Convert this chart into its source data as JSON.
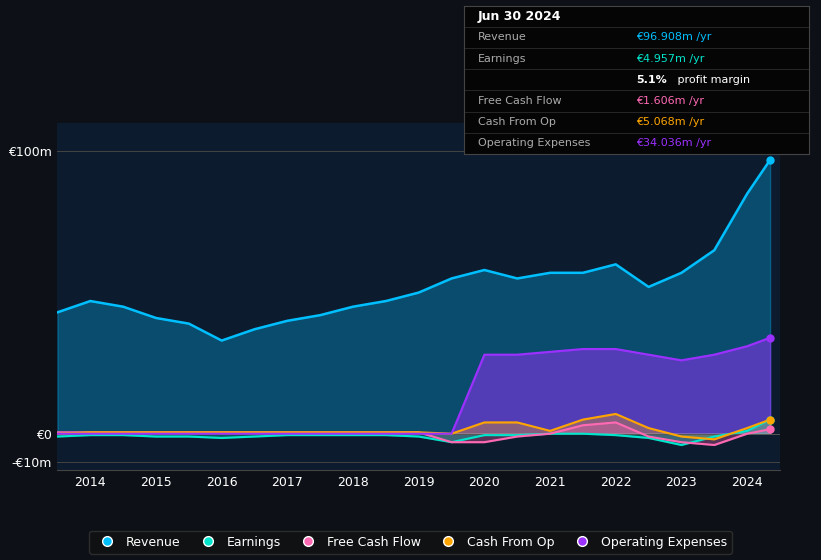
{
  "bg_color": "#0d1117",
  "plot_bg_color": "#0d1b2e",
  "years": [
    2013.5,
    2014,
    2014.5,
    2015,
    2015.5,
    2016,
    2016.5,
    2017,
    2017.5,
    2018,
    2018.5,
    2019,
    2019.5,
    2020,
    2020.5,
    2021,
    2021.5,
    2022,
    2022.5,
    2023,
    2023.5,
    2024,
    2024.35
  ],
  "revenue": [
    43,
    47,
    45,
    41,
    39,
    33,
    37,
    40,
    42,
    45,
    47,
    50,
    55,
    58,
    55,
    57,
    57,
    60,
    52,
    57,
    65,
    85,
    97
  ],
  "earnings": [
    -1,
    -0.5,
    -0.5,
    -1,
    -1,
    -1.5,
    -1,
    -0.5,
    -0.5,
    -0.5,
    -0.5,
    -1,
    -3,
    -0.5,
    -0.5,
    0,
    0,
    -0.5,
    -1.5,
    -4,
    -1,
    1,
    5
  ],
  "free_cash_flow": [
    0.5,
    0.5,
    0.5,
    0.5,
    0.5,
    0.5,
    0.5,
    0.5,
    0.5,
    0.5,
    0.5,
    0.5,
    -3,
    -3,
    -1,
    0,
    3,
    4,
    -1,
    -3,
    -4,
    0,
    1.6
  ],
  "cash_from_op": [
    0,
    0.5,
    0.5,
    0.5,
    0.5,
    0.5,
    0.5,
    0.5,
    0.5,
    0.5,
    0.5,
    0.5,
    0,
    4,
    4,
    1,
    5,
    7,
    2,
    -1,
    -2,
    2,
    5
  ],
  "operating_expenses": [
    0,
    0,
    0,
    0,
    0,
    0,
    0,
    0,
    0,
    0,
    0,
    0,
    0,
    28,
    28,
    29,
    30,
    30,
    28,
    26,
    28,
    31,
    34
  ],
  "ylim": [
    -13,
    110
  ],
  "xtick_years": [
    2014,
    2015,
    2016,
    2017,
    2018,
    2019,
    2020,
    2021,
    2022,
    2023,
    2024
  ],
  "colors": {
    "revenue": "#00bfff",
    "earnings": "#00e5cc",
    "free_cash_flow": "#ff69b4",
    "cash_from_op": "#ffa500",
    "operating_expenses": "#9b30ff"
  },
  "info_rows": [
    {
      "label": "Jun 30 2024",
      "value": null,
      "value_color": null,
      "is_header": true
    },
    {
      "label": "Revenue",
      "value": "€96.908m /yr",
      "value_color": "#00bfff",
      "is_header": false
    },
    {
      "label": "Earnings",
      "value": "€4.957m /yr",
      "value_color": "#00e5cc",
      "is_header": false
    },
    {
      "label": "",
      "value": "5.1% profit margin",
      "value_color": "white",
      "is_header": false
    },
    {
      "label": "Free Cash Flow",
      "value": "€1.606m /yr",
      "value_color": "#ff69b4",
      "is_header": false
    },
    {
      "label": "Cash From Op",
      "value": "€5.068m /yr",
      "value_color": "#ffa500",
      "is_header": false
    },
    {
      "label": "Operating Expenses",
      "value": "€34.036m /yr",
      "value_color": "#9b30ff",
      "is_header": false
    }
  ],
  "legend_labels": [
    "Revenue",
    "Earnings",
    "Free Cash Flow",
    "Cash From Op",
    "Operating Expenses"
  ]
}
